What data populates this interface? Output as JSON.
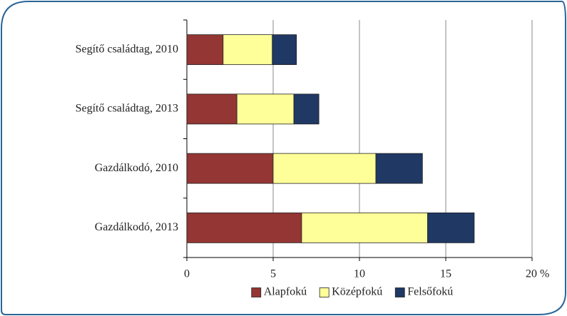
{
  "chart_data": {
    "type": "stacked_barh",
    "categories": [
      "Segítő családtag, 2010",
      "Segítő családtag, 2013",
      "Gazdálkodó, 2010",
      "Gazdálkodó, 2013"
    ],
    "series": [
      {
        "name": "Alapfokú",
        "color": "#943634",
        "values": [
          2.1,
          2.9,
          5.0,
          6.65
        ]
      },
      {
        "name": "Középfokú",
        "color": "#ffff99",
        "values": [
          2.85,
          3.3,
          5.95,
          7.3
        ]
      },
      {
        "name": "Felsőfokú",
        "color": "#1f3864",
        "values": [
          1.4,
          1.45,
          2.7,
          2.7
        ]
      }
    ],
    "xlim": [
      0,
      20
    ],
    "xticks": [
      0,
      5,
      10,
      15,
      {
        "value": 20,
        "label": "20 %"
      }
    ],
    "grid": true,
    "legend": "bottom"
  }
}
